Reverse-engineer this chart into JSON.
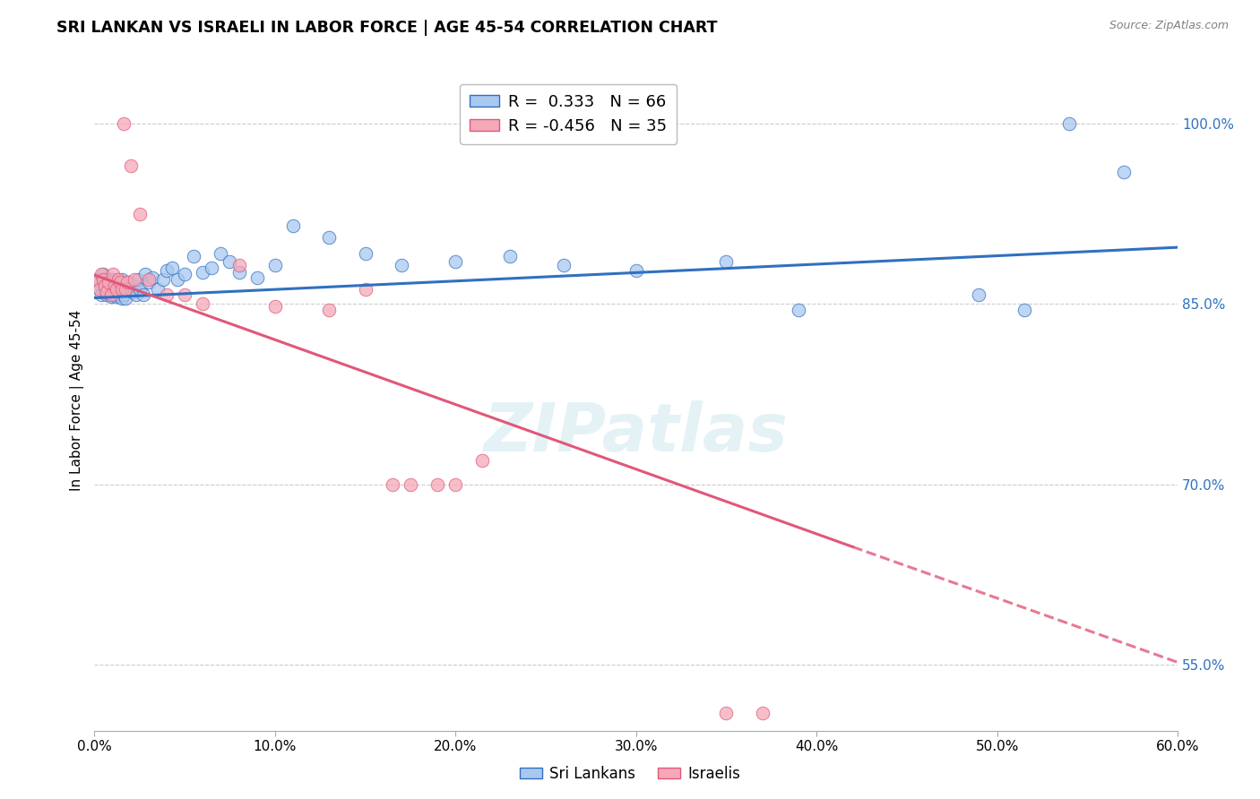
{
  "title": "SRI LANKAN VS ISRAELI IN LABOR FORCE | AGE 45-54 CORRELATION CHART",
  "source": "Source: ZipAtlas.com",
  "ylabel": "In Labor Force | Age 45-54",
  "xlim": [
    0.0,
    0.6
  ],
  "ylim": [
    0.495,
    1.045
  ],
  "xtick_labels": [
    "0.0%",
    "10.0%",
    "20.0%",
    "30.0%",
    "40.0%",
    "50.0%",
    "60.0%"
  ],
  "xtick_vals": [
    0.0,
    0.1,
    0.2,
    0.3,
    0.4,
    0.5,
    0.6
  ],
  "ytick_labels": [
    "55.0%",
    "70.0%",
    "85.0%",
    "100.0%"
  ],
  "ytick_vals": [
    0.55,
    0.7,
    0.85,
    1.0
  ],
  "blue_R": 0.333,
  "blue_N": 66,
  "pink_R": -0.456,
  "pink_N": 35,
  "blue_color": "#A8C8F0",
  "pink_color": "#F4A8B8",
  "blue_line_color": "#3070C0",
  "pink_line_color": "#E05878",
  "watermark": "ZIPatlas",
  "blue_line_x0": 0.0,
  "blue_line_y0": 0.855,
  "blue_line_x1": 0.6,
  "blue_line_y1": 0.897,
  "pink_line_x0": 0.0,
  "pink_line_y0": 0.874,
  "pink_line_x1_solid": 0.42,
  "pink_line_y1_solid": 0.648,
  "pink_line_x1_dash": 0.6,
  "pink_line_y1_dash": 0.552,
  "blue_x": [
    0.002,
    0.003,
    0.004,
    0.005,
    0.005,
    0.006,
    0.006,
    0.007,
    0.007,
    0.008,
    0.008,
    0.009,
    0.009,
    0.01,
    0.01,
    0.011,
    0.011,
    0.012,
    0.012,
    0.013,
    0.013,
    0.014,
    0.015,
    0.015,
    0.016,
    0.017,
    0.018,
    0.019,
    0.02,
    0.021,
    0.022,
    0.023,
    0.024,
    0.025,
    0.027,
    0.028,
    0.03,
    0.032,
    0.035,
    0.038,
    0.04,
    0.043,
    0.046,
    0.05,
    0.055,
    0.06,
    0.065,
    0.07,
    0.075,
    0.08,
    0.09,
    0.1,
    0.11,
    0.13,
    0.15,
    0.17,
    0.2,
    0.23,
    0.26,
    0.3,
    0.35,
    0.39,
    0.49,
    0.515,
    0.54,
    0.57
  ],
  "blue_y": [
    0.868,
    0.862,
    0.858,
    0.87,
    0.875,
    0.86,
    0.865,
    0.858,
    0.87,
    0.862,
    0.87,
    0.856,
    0.865,
    0.858,
    0.87,
    0.862,
    0.868,
    0.856,
    0.865,
    0.858,
    0.865,
    0.862,
    0.855,
    0.87,
    0.858,
    0.855,
    0.862,
    0.868,
    0.862,
    0.86,
    0.865,
    0.858,
    0.87,
    0.862,
    0.858,
    0.875,
    0.868,
    0.872,
    0.862,
    0.87,
    0.878,
    0.88,
    0.87,
    0.875,
    0.89,
    0.876,
    0.88,
    0.892,
    0.885,
    0.876,
    0.872,
    0.882,
    0.915,
    0.905,
    0.892,
    0.882,
    0.885,
    0.89,
    0.882,
    0.878,
    0.885,
    0.845,
    0.858,
    0.845,
    1.0,
    0.96
  ],
  "pink_x": [
    0.002,
    0.003,
    0.004,
    0.005,
    0.006,
    0.007,
    0.008,
    0.009,
    0.01,
    0.011,
    0.012,
    0.013,
    0.014,
    0.015,
    0.016,
    0.017,
    0.018,
    0.02,
    0.022,
    0.025,
    0.03,
    0.04,
    0.05,
    0.06,
    0.08,
    0.1,
    0.13,
    0.15,
    0.165,
    0.175,
    0.19,
    0.2,
    0.215,
    0.35,
    0.37
  ],
  "pink_y": [
    0.87,
    0.862,
    0.875,
    0.87,
    0.865,
    0.86,
    0.868,
    0.858,
    0.875,
    0.865,
    0.862,
    0.87,
    0.868,
    0.862,
    1.0,
    0.862,
    0.868,
    0.965,
    0.87,
    0.925,
    0.87,
    0.858,
    0.858,
    0.85,
    0.882,
    0.848,
    0.845,
    0.862,
    0.7,
    0.7,
    0.7,
    0.7,
    0.72,
    0.51,
    0.51
  ]
}
